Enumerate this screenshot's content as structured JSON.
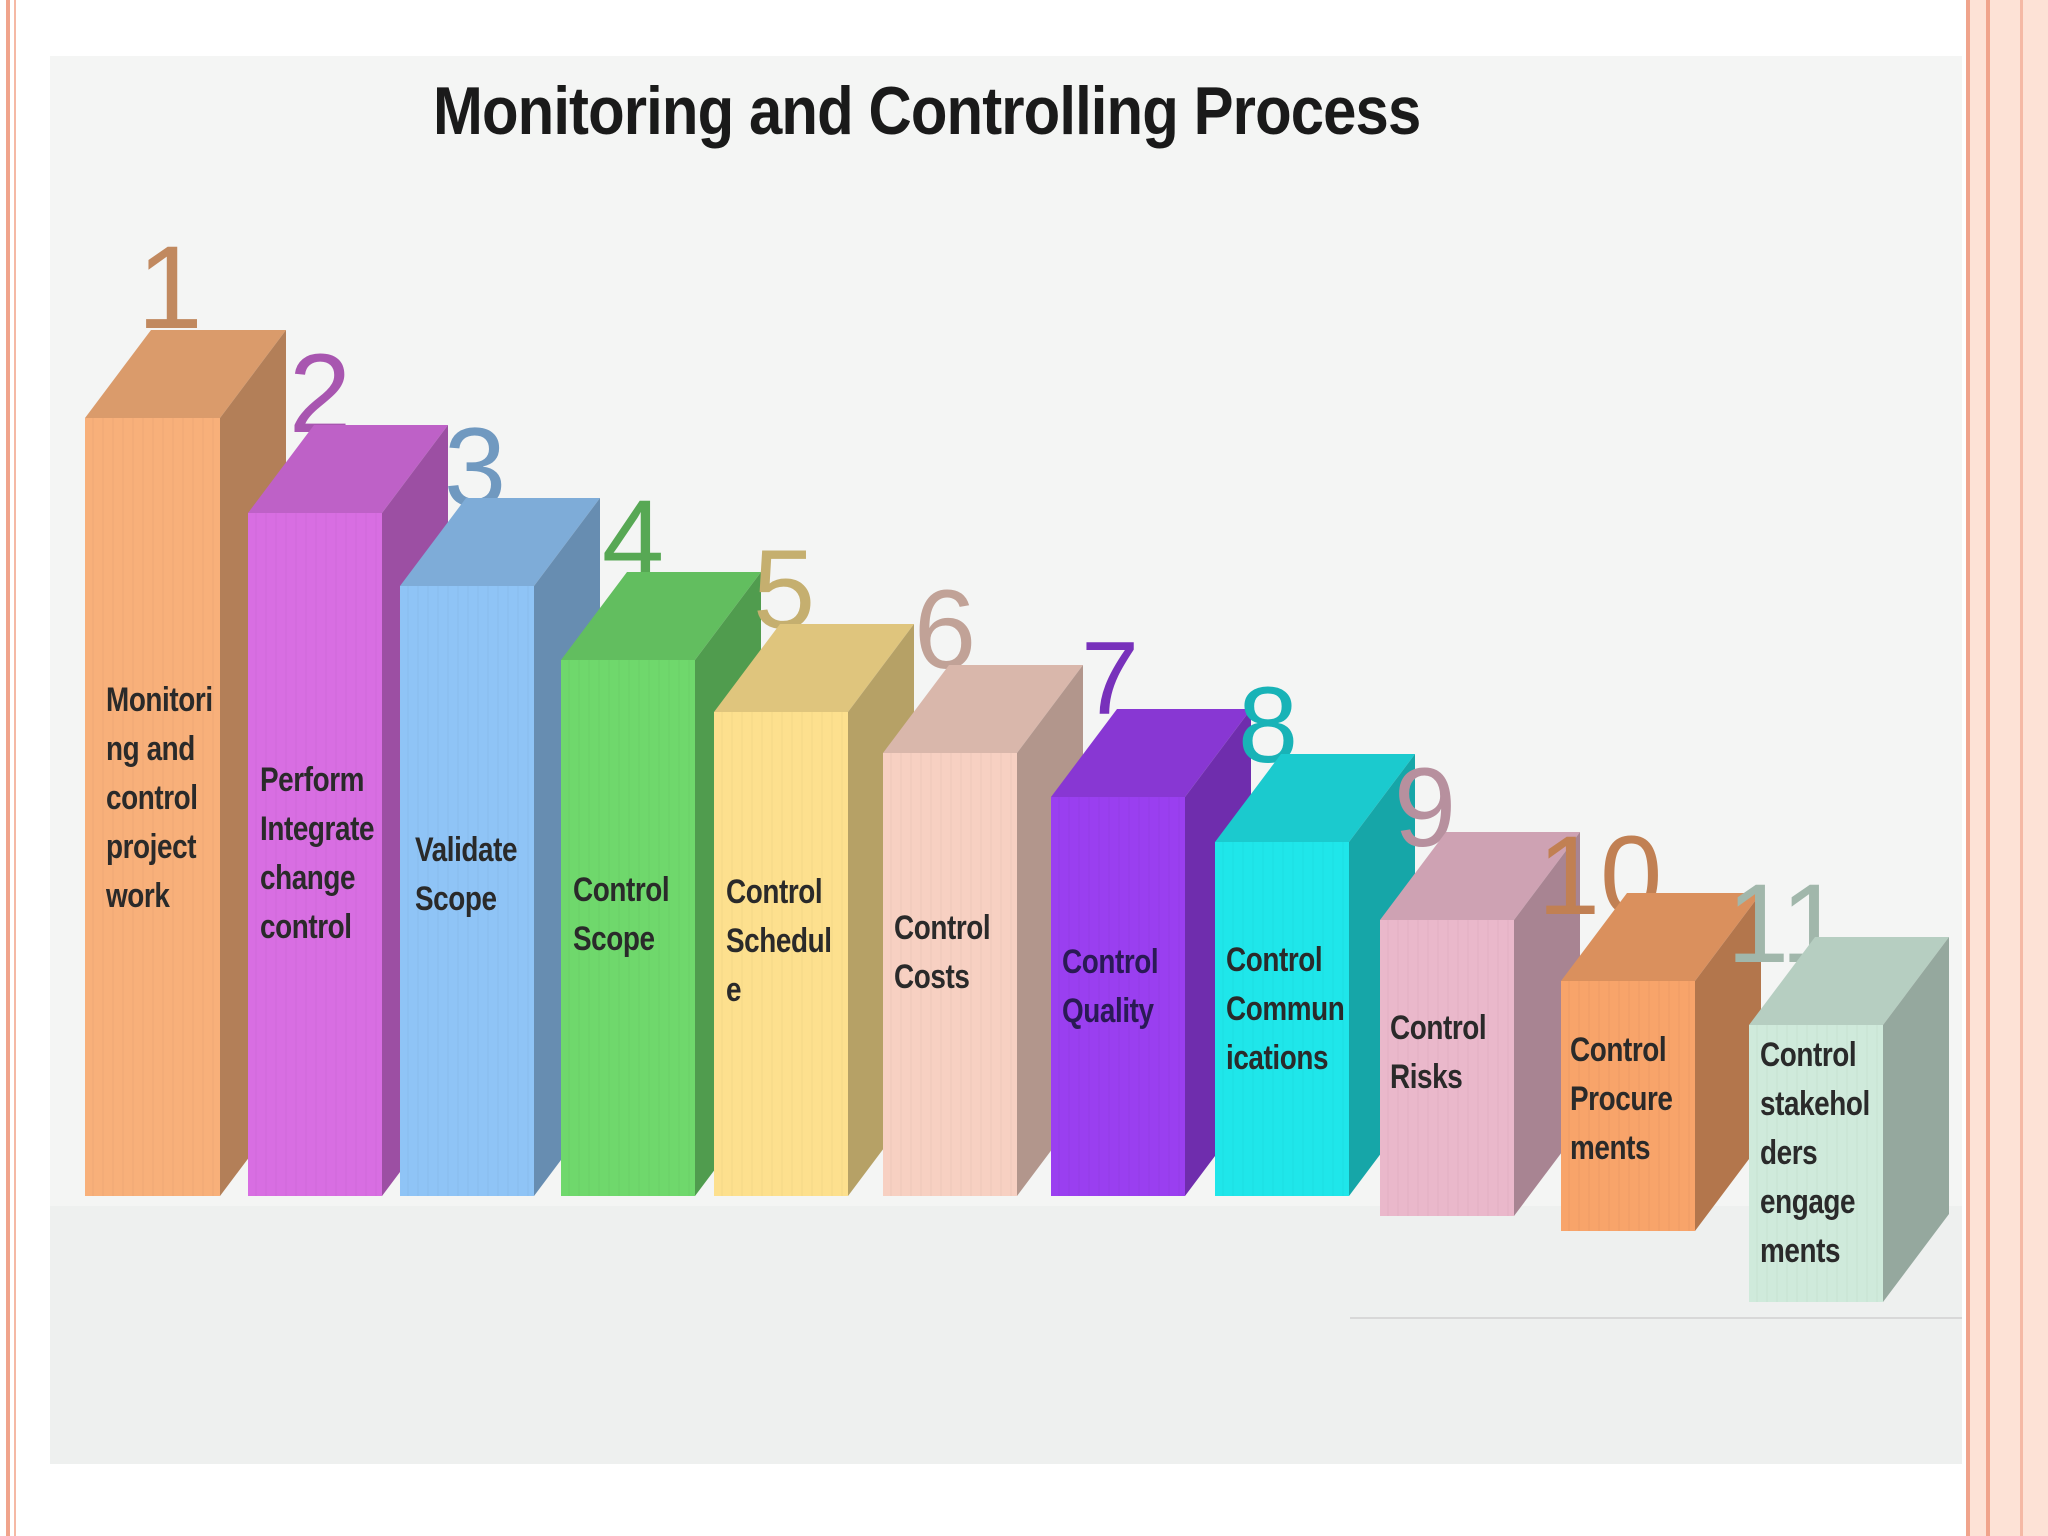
{
  "title": "Monitoring and Controlling Process",
  "steps": [
    {
      "number": "1",
      "label": "Monitori\nng and\ncontrol\nproject\nwork",
      "color": "#f8b07a"
    },
    {
      "number": "2",
      "label": "Perform\nIntegrate\nchange\ncontrol",
      "color": "#d86ee2"
    },
    {
      "number": "3",
      "label": "Validate\nScope",
      "color": "#8fc4f6"
    },
    {
      "number": "4",
      "label": "Control\nScope",
      "color": "#6fd86c"
    },
    {
      "number": "5",
      "label": "Control\nSchedul\ne",
      "color": "#fde08e"
    },
    {
      "number": "6",
      "label": "Control\nCosts",
      "color": "#f7d0c2"
    },
    {
      "number": "7",
      "label": "Control\nQuality",
      "color": "#9a3ff0"
    },
    {
      "number": "8",
      "label": "Control\nCommun\nications",
      "color": "#1fe6ea"
    },
    {
      "number": "9",
      "label": "Control\nRisks",
      "color": "#eab8cb"
    },
    {
      "number": "10",
      "label": "Control\nProcure\nments",
      "color": "#f8a46a"
    },
    {
      "number": "11",
      "label": "Control\nstakehol\nders\nengage\nments",
      "color": "#cfeadb"
    }
  ]
}
